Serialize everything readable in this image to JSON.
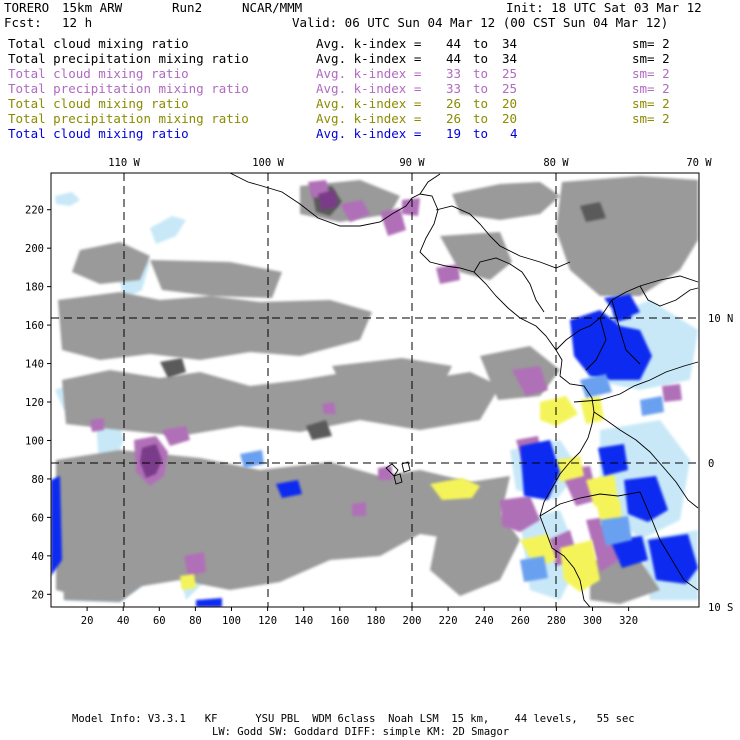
{
  "header": {
    "model": "TORERO",
    "resolution": "15km ARW",
    "run": "Run2",
    "org": "NCAR/MMM",
    "init": "Init: 18 UTC Sat 03 Mar 12",
    "fcst_label": "Fcst:",
    "fcst_value": "12 h",
    "valid": "Valid: 06 UTC Sun 04 Mar 12 (00 CST Sun 04 Mar 12)"
  },
  "fields": [
    {
      "name": "Total cloud mixing ratio",
      "stat": "Avg. k-index =",
      "from": "44",
      "to_word": "to",
      "to": "34",
      "sm": "sm= 2",
      "color": "#000000"
    },
    {
      "name": "Total precipitation mixing ratio",
      "stat": "Avg. k-index =",
      "from": "44",
      "to_word": "to",
      "to": "34",
      "sm": "sm= 2",
      "color": "#000000"
    },
    {
      "name": "Total cloud mixing ratio",
      "stat": "Avg. k-index =",
      "from": "33",
      "to_word": "to",
      "to": "25",
      "sm": "sm= 2",
      "color": "#b06ac0"
    },
    {
      "name": "Total precipitation mixing ratio",
      "stat": "Avg. k-index =",
      "from": "33",
      "to_word": "to",
      "to": "25",
      "sm": "sm= 2",
      "color": "#b06ac0"
    },
    {
      "name": "Total cloud mixing ratio",
      "stat": "Avg. k-index =",
      "from": "26",
      "to_word": "to",
      "to": "20",
      "sm": "sm= 2",
      "color": "#8b8b00"
    },
    {
      "name": "Total precipitation mixing ratio",
      "stat": "Avg. k-index =",
      "from": "26",
      "to_word": "to",
      "to": "20",
      "sm": "sm= 2",
      "color": "#8b8b00"
    },
    {
      "name": "Total cloud mixing ratio",
      "stat": "Avg. k-index =",
      "from": "19",
      "to_word": "to",
      "to": "4",
      "sm": "",
      "color": "#0000dd"
    }
  ],
  "map": {
    "lon_labels": [
      "110 W",
      "100 W",
      "90 W",
      "80 W",
      "70 W"
    ],
    "lat_labels": [
      "10 N",
      "0",
      "10 S"
    ],
    "x_ticks": [
      "20",
      "40",
      "60",
      "80",
      "100",
      "120",
      "140",
      "160",
      "180",
      "200",
      "220",
      "240",
      "260",
      "280",
      "300",
      "320"
    ],
    "y_ticks": [
      "220",
      "200",
      "180",
      "160",
      "140",
      "120",
      "100",
      "80",
      "60",
      "40",
      "20"
    ],
    "colors": {
      "gray": "#9a9a9a",
      "dark_gray": "#5a5a5a",
      "purple": "#b070b8",
      "dark_purple": "#7a3a88",
      "yellow": "#f4f45a",
      "light_blue": "#c8e8f8",
      "blue": "#0a2cf0",
      "mid_blue": "#6aa0f0"
    }
  },
  "footer": {
    "line1": "Model Info: V3.3.1   KF      YSU PBL  WDM 6class  Noah LSM  15 km,    44 levels,   55 sec",
    "line2": "LW: Godd SW: Goddard DIFF: simple KM: 2D Smagor"
  }
}
